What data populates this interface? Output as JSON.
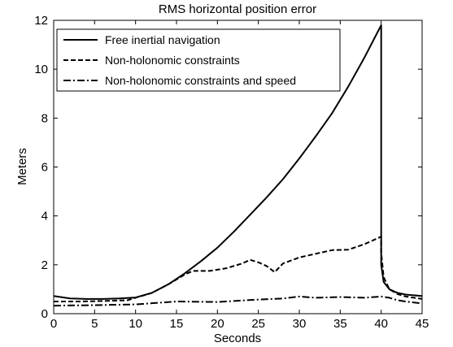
{
  "chart_data": {
    "type": "line",
    "title": "RMS horizontal position error",
    "xlabel": "Seconds",
    "ylabel": "Meters",
    "xlim": [
      0,
      45
    ],
    "ylim": [
      0,
      12
    ],
    "xticks": [
      0,
      5,
      10,
      15,
      20,
      25,
      30,
      35,
      40,
      45
    ],
    "yticks": [
      0,
      2,
      4,
      6,
      8,
      10,
      12
    ],
    "grid": false,
    "legend_position": "top-left",
    "series": [
      {
        "name": "Free inertial navigation",
        "style": "solid",
        "x": [
          0,
          2,
          4,
          6,
          8,
          10,
          12,
          14,
          16,
          18,
          20,
          22,
          24,
          26,
          28,
          30,
          32,
          34,
          36,
          38,
          40,
          40,
          40.3,
          41,
          42,
          43,
          45
        ],
        "y": [
          0.72,
          0.62,
          0.6,
          0.6,
          0.62,
          0.66,
          0.85,
          1.2,
          1.65,
          2.15,
          2.7,
          3.35,
          4.05,
          4.75,
          5.5,
          6.35,
          7.25,
          8.2,
          9.3,
          10.5,
          11.8,
          2.0,
          1.3,
          1.0,
          0.85,
          0.78,
          0.72
        ]
      },
      {
        "name": "Non-holonomic constraints",
        "style": "dashed",
        "x": [
          0,
          3,
          6,
          9,
          12,
          14,
          16,
          17,
          19,
          21,
          23,
          24,
          25,
          26,
          27,
          28,
          30,
          32,
          34,
          36,
          38,
          40,
          40,
          40.3,
          41,
          42,
          43,
          45
        ],
        "y": [
          0.5,
          0.5,
          0.52,
          0.55,
          0.85,
          1.2,
          1.6,
          1.75,
          1.75,
          1.85,
          2.05,
          2.2,
          2.1,
          1.95,
          1.7,
          2.05,
          2.3,
          2.45,
          2.6,
          2.62,
          2.85,
          3.15,
          2.5,
          1.5,
          1.0,
          0.8,
          0.7,
          0.6
        ]
      },
      {
        "name": "Non-holonomic constraints and speed",
        "style": "dashdot",
        "x": [
          0,
          5,
          10,
          15,
          20,
          25,
          28,
          30,
          32,
          35,
          38,
          40,
          41,
          42,
          43,
          45
        ],
        "y": [
          0.33,
          0.35,
          0.38,
          0.5,
          0.48,
          0.58,
          0.62,
          0.7,
          0.65,
          0.68,
          0.65,
          0.7,
          0.65,
          0.55,
          0.5,
          0.42
        ]
      }
    ]
  }
}
